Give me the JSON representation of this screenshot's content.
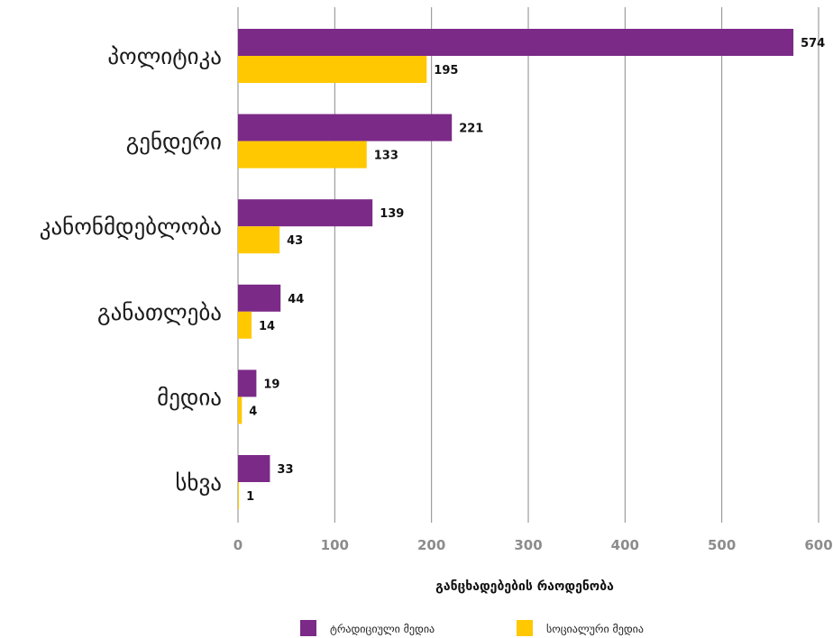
{
  "chart_data": {
    "type": "bar",
    "orientation": "horizontal",
    "categories": [
      "პოლიტიკა",
      "გენდერი",
      "კანონმდებლობა",
      "განათლება",
      "მედია",
      "სხვა"
    ],
    "series": [
      {
        "name": "ტრადიციული მედია",
        "color": "#7b2a87",
        "values": [
          574,
          221,
          139,
          44,
          19,
          33
        ]
      },
      {
        "name": "სოციალური მედია",
        "color": "#ffc800",
        "values": [
          195,
          133,
          43,
          14,
          4,
          1
        ]
      }
    ],
    "xlabel": "განცხადებების რაოდენობა",
    "ylabel": "",
    "xlim": [
      0,
      600
    ],
    "xticks": [
      0,
      100,
      200,
      300,
      400,
      500,
      600
    ],
    "grid": true,
    "legend_position": "bottom"
  }
}
